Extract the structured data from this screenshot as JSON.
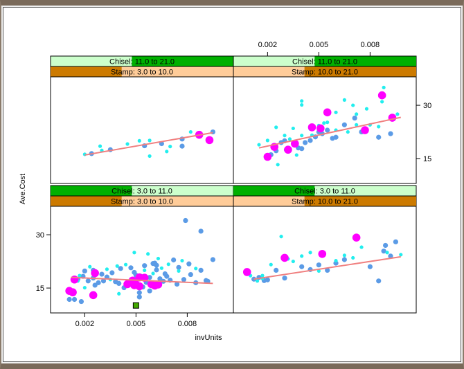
{
  "colors": {
    "background": "#ffffff",
    "frame": "#7a6a5a",
    "points_small_blue": "#5b9be6",
    "points_small_cyan": "#22eeee",
    "points_large": "#ff00ff",
    "fit_line": "#f08080",
    "strip_chisel_bg": "#ccffcc",
    "strip_chisel_fg": "#00b000",
    "strip_stamp_bg": "#ffcc99",
    "strip_stamp_fg": "#cc7a00",
    "marker_green": "#44aa00"
  },
  "chart_data": {
    "type": "scatter",
    "xlabel": "invUnits",
    "ylabel": "Ave.Cost",
    "xlim": [
      0.0,
      0.0107
    ],
    "ylim": [
      8.0,
      38.0
    ],
    "x_ticks": [
      "0.002",
      "0.005",
      "0.008"
    ],
    "x_tick_values": [
      0.002,
      0.005,
      0.008
    ],
    "y_ticks": [
      "15",
      "30"
    ],
    "y_tick_values": [
      15,
      30
    ],
    "layout": "2x2 trellis",
    "panels": [
      {
        "name": "chisel-11-21-stamp-3-10",
        "chisel_label": "Chisel: 11.0 to 21.0",
        "stamp_label": "Stamp: 3.0 to 10.0",
        "chisel_range": [
          11.0,
          21.0
        ],
        "chisel_span": [
          3.0,
          21.0
        ],
        "stamp_range": [
          3.0,
          10.0
        ],
        "stamp_span": [
          3.0,
          21.0
        ],
        "blue": [
          [
            0.0035,
            17.5
          ],
          [
            0.0055,
            18.6
          ],
          [
            0.0065,
            19.2
          ],
          [
            0.0077,
            20.5
          ],
          [
            0.0095,
            22.5
          ],
          [
            0.0024,
            16.4
          ],
          [
            0.0077,
            18.5
          ]
        ],
        "cyan": [
          [
            0.0029,
            18.5
          ],
          [
            0.0052,
            20.0
          ],
          [
            0.0058,
            20.1
          ],
          [
            0.007,
            18.4
          ],
          [
            0.0082,
            22.5
          ],
          [
            0.003,
            17.3
          ],
          [
            0.0068,
            17.0
          ],
          [
            0.0045,
            19.1
          ],
          [
            0.0058,
            15.7
          ],
          [
            0.002,
            16.2
          ]
        ],
        "large": [
          [
            0.0087,
            21.7
          ],
          [
            0.0093,
            20.2
          ]
        ],
        "fit": [
          [
            0.002,
            16.0
          ],
          [
            0.0095,
            22.3
          ]
        ]
      },
      {
        "name": "chisel-11-21-stamp-10-21",
        "chisel_label": "Chisel: 11.0 to 21.0",
        "stamp_label": "Stamp: 10.0 to 21.0",
        "chisel_range": [
          11.0,
          21.0
        ],
        "chisel_span": [
          3.0,
          21.0
        ],
        "stamp_range": [
          10.0,
          21.0
        ],
        "stamp_span": [
          3.0,
          21.0
        ],
        "blue": [
          [
            0.0022,
            16.1
          ],
          [
            0.0025,
            17.2
          ],
          [
            0.003,
            20.0
          ],
          [
            0.0031,
            17.5
          ],
          [
            0.0038,
            18.0
          ],
          [
            0.0042,
            19.5
          ],
          [
            0.0045,
            20.1
          ],
          [
            0.0048,
            21.1
          ],
          [
            0.0052,
            22.0
          ],
          [
            0.0055,
            23.0
          ],
          [
            0.006,
            21.0
          ],
          [
            0.0065,
            24.5
          ],
          [
            0.0075,
            22.5
          ],
          [
            0.0085,
            21.0
          ],
          [
            0.0092,
            22.0
          ],
          [
            0.0028,
            19.5
          ],
          [
            0.004,
            17.8
          ],
          [
            0.005,
            22.5
          ],
          [
            0.0058,
            20.7
          ],
          [
            0.0071,
            26.4
          ]
        ],
        "cyan": [
          [
            0.002,
            20.1
          ],
          [
            0.0025,
            23.8
          ],
          [
            0.003,
            21.5
          ],
          [
            0.0033,
            20.5
          ],
          [
            0.0035,
            23.5
          ],
          [
            0.004,
            30.1
          ],
          [
            0.004,
            31.2
          ],
          [
            0.0046,
            21.6
          ],
          [
            0.0053,
            25.0
          ],
          [
            0.006,
            28.0
          ],
          [
            0.0065,
            31.5
          ],
          [
            0.007,
            30.0
          ],
          [
            0.0078,
            29.0
          ],
          [
            0.0085,
            24.0
          ],
          [
            0.0088,
            35.0
          ],
          [
            0.0088,
            33.0
          ],
          [
            0.0096,
            27.5
          ],
          [
            0.0087,
            31.0
          ],
          [
            0.008,
            24.5
          ],
          [
            0.0015,
            18.9
          ],
          [
            0.0037,
            16.0
          ],
          [
            0.004,
            21.5
          ],
          [
            0.0045,
            23.3
          ],
          [
            0.005,
            24.3
          ],
          [
            0.0055,
            25.2
          ],
          [
            0.006,
            23.0
          ],
          [
            0.0067,
            22.5
          ],
          [
            0.0072,
            24.5
          ],
          [
            0.0026,
            13.3
          ],
          [
            0.0072,
            27.5
          ]
        ],
        "large": [
          [
            0.002,
            15.5
          ],
          [
            0.0024,
            18.3
          ],
          [
            0.0032,
            17.5
          ],
          [
            0.0036,
            19.2
          ],
          [
            0.0046,
            23.8
          ],
          [
            0.0051,
            23.5
          ],
          [
            0.0055,
            28.0
          ],
          [
            0.0077,
            23.0
          ],
          [
            0.0093,
            26.5
          ],
          [
            0.0087,
            32.8
          ]
        ],
        "fit": [
          [
            0.0015,
            18.0
          ],
          [
            0.0098,
            26.6
          ]
        ]
      },
      {
        "name": "chisel-3-11-stamp-3-10",
        "chisel_label": "Chisel: 3.0 to 11.0",
        "stamp_label": "Stamp: 3.0 to 10.0",
        "chisel_range": [
          3.0,
          11.0
        ],
        "chisel_span": [
          3.0,
          21.0
        ],
        "stamp_range": [
          3.0,
          10.0
        ],
        "stamp_span": [
          3.0,
          21.0
        ],
        "blue": [
          [
            0.0012,
            14.0
          ],
          [
            0.0014,
            11.8
          ],
          [
            0.0016,
            17.5
          ],
          [
            0.0019,
            18.3
          ],
          [
            0.0022,
            17.0
          ],
          [
            0.0025,
            17.8
          ],
          [
            0.0028,
            16.5
          ],
          [
            0.0031,
            17.0
          ],
          [
            0.0033,
            18.1
          ],
          [
            0.0036,
            19.3
          ],
          [
            0.0038,
            16.8
          ],
          [
            0.0041,
            20.5
          ],
          [
            0.0043,
            15.1
          ],
          [
            0.0046,
            16.2
          ],
          [
            0.0048,
            17.4
          ],
          [
            0.005,
            18.6
          ],
          [
            0.0052,
            13.7
          ],
          [
            0.0054,
            15.3
          ],
          [
            0.0056,
            16.6
          ],
          [
            0.0058,
            18.0
          ],
          [
            0.006,
            21.9
          ],
          [
            0.0062,
            20.1
          ],
          [
            0.0064,
            17.6
          ],
          [
            0.0066,
            16.9
          ],
          [
            0.0068,
            18.3
          ],
          [
            0.007,
            17.2
          ],
          [
            0.0072,
            22.9
          ],
          [
            0.0074,
            16.1
          ],
          [
            0.0078,
            17.4
          ],
          [
            0.0082,
            18.8
          ],
          [
            0.0085,
            16.5
          ],
          [
            0.0088,
            20.0
          ],
          [
            0.0092,
            16.9
          ],
          [
            0.0095,
            23.0
          ],
          [
            0.0079,
            34.0
          ],
          [
            0.0088,
            31.0
          ],
          [
            0.004,
            16.3
          ],
          [
            0.0049,
            19.4
          ],
          [
            0.0052,
            12.5
          ],
          [
            0.0011,
            11.8
          ],
          [
            0.0018,
            11.2
          ],
          [
            0.0026,
            15.8
          ],
          [
            0.002,
            19.8
          ],
          [
            0.0025,
            20.0
          ],
          [
            0.003,
            18.9
          ],
          [
            0.0047,
            20.7
          ],
          [
            0.0058,
            14.2
          ],
          [
            0.0061,
            22.0
          ],
          [
            0.0067,
            19.0
          ],
          [
            0.0075,
            20.8
          ],
          [
            0.0081,
            21.8
          ],
          [
            0.0091,
            17.1
          ],
          [
            0.0055,
            21.3
          ],
          [
            0.0062,
            21.4
          ]
        ],
        "cyan": [
          [
            0.0017,
            18.5
          ],
          [
            0.0023,
            21.0
          ],
          [
            0.0027,
            19.0
          ],
          [
            0.0033,
            20.3
          ],
          [
            0.0039,
            21.2
          ],
          [
            0.0044,
            21.6
          ],
          [
            0.0049,
            25.0
          ],
          [
            0.0053,
            18.5
          ],
          [
            0.0057,
            24.6
          ],
          [
            0.0063,
            23.3
          ],
          [
            0.0069,
            21.7
          ],
          [
            0.0077,
            22.7
          ],
          [
            0.0085,
            20.5
          ],
          [
            0.0035,
            17.4
          ],
          [
            0.0045,
            15.7
          ],
          [
            0.005,
            17.1
          ],
          [
            0.0055,
            20.0
          ],
          [
            0.006,
            19.1
          ],
          [
            0.0065,
            20.6
          ],
          [
            0.0075,
            19.8
          ],
          [
            0.0016,
            17.0
          ],
          [
            0.002,
            15.1
          ],
          [
            0.004,
            13.4
          ]
        ],
        "large": [
          [
            0.0011,
            14.2
          ],
          [
            0.0013,
            13.8
          ],
          [
            0.0014,
            17.4
          ],
          [
            0.0025,
            13.0
          ],
          [
            0.0026,
            19.2
          ],
          [
            0.0045,
            16.1
          ],
          [
            0.0048,
            17.1
          ],
          [
            0.005,
            16.0
          ],
          [
            0.0052,
            15.5
          ],
          [
            0.0055,
            17.9
          ],
          [
            0.0059,
            16.1
          ],
          [
            0.0061,
            15.7
          ],
          [
            0.0063,
            16.0
          ],
          [
            0.0049,
            15.8
          ],
          [
            0.0052,
            18.0
          ]
        ],
        "marker": [
          [
            0.005,
            10.1
          ]
        ],
        "fit": [
          [
            0.0012,
            18.0
          ],
          [
            0.0095,
            16.3
          ]
        ]
      },
      {
        "name": "chisel-3-11-stamp-10-21",
        "chisel_label": "Chisel: 3.0 to 11.0",
        "stamp_label": "Stamp: 10.0 to 21.0",
        "chisel_range": [
          3.0,
          11.0
        ],
        "chisel_span": [
          3.0,
          21.0
        ],
        "stamp_range": [
          10.0,
          21.0
        ],
        "stamp_span": [
          3.0,
          21.0
        ],
        "blue": [
          [
            0.0012,
            17.5
          ],
          [
            0.0015,
            18.0
          ],
          [
            0.0018,
            17.1
          ],
          [
            0.002,
            17.3
          ],
          [
            0.0025,
            20.0
          ],
          [
            0.003,
            17.8
          ],
          [
            0.004,
            21.0
          ],
          [
            0.0045,
            20.2
          ],
          [
            0.005,
            21.5
          ],
          [
            0.0055,
            20.0
          ],
          [
            0.006,
            22.0
          ],
          [
            0.0065,
            23.0
          ],
          [
            0.008,
            21.0
          ],
          [
            0.0085,
            17.0
          ],
          [
            0.0092,
            24.0
          ],
          [
            0.0089,
            27.0
          ],
          [
            0.0095,
            28.0
          ],
          [
            0.0088,
            25.4
          ]
        ],
        "cyan": [
          [
            0.001,
            18.5
          ],
          [
            0.0014,
            17.0
          ],
          [
            0.0017,
            18.5
          ],
          [
            0.0022,
            21.6
          ],
          [
            0.0028,
            29.5
          ],
          [
            0.0035,
            22.5
          ],
          [
            0.004,
            24.0
          ],
          [
            0.0045,
            25.0
          ],
          [
            0.005,
            19.8
          ],
          [
            0.006,
            22.7
          ],
          [
            0.0065,
            24.2
          ],
          [
            0.007,
            23.5
          ],
          [
            0.0075,
            26.5
          ],
          [
            0.009,
            25.0
          ],
          [
            0.0098,
            24.4
          ],
          [
            0.0017,
            17.7
          ],
          [
            0.0032,
            23.2
          ]
        ],
        "large": [
          [
            0.0008,
            19.5
          ],
          [
            0.003,
            23.5
          ],
          [
            0.0052,
            24.6
          ],
          [
            0.0072,
            29.2
          ]
        ],
        "fit": [
          [
            0.0012,
            17.5
          ],
          [
            0.0098,
            23.8
          ]
        ]
      }
    ]
  }
}
